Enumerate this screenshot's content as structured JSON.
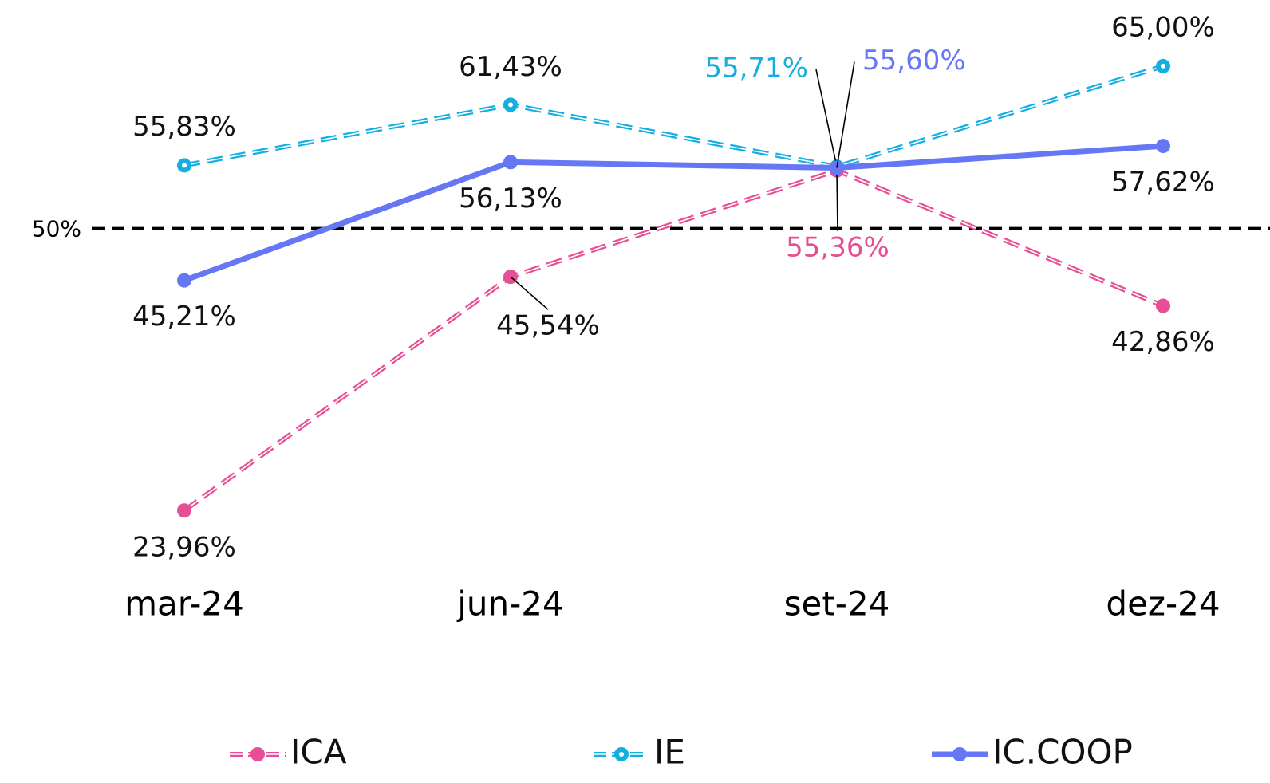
{
  "chart_data": {
    "type": "line",
    "categories": [
      "mar-24",
      "jun-24",
      "set-24",
      "dez-24"
    ],
    "series": [
      {
        "name": "ICA",
        "color": "#e64f96",
        "dashed": true,
        "values": [
          23.96,
          45.54,
          55.36,
          42.86
        ],
        "value_labels": [
          "23,96%",
          "45,54%",
          "55,36%",
          "42,86%"
        ]
      },
      {
        "name": "IE",
        "color": "#14afe0",
        "dashed": true,
        "values": [
          55.83,
          61.43,
          55.71,
          65.0
        ],
        "value_labels": [
          "55,83%",
          "61,43%",
          "55,71%",
          "65,00%"
        ]
      },
      {
        "name": "IC.COOP",
        "color": "#6677f5",
        "dashed": false,
        "values": [
          45.21,
          56.13,
          55.6,
          57.62
        ],
        "value_labels": [
          "45,21%",
          "56,13%",
          "55,60%",
          "57,62%"
        ]
      }
    ],
    "ylim": [
      20,
      70
    ],
    "reference_line": {
      "value": 50,
      "label": "50%"
    },
    "legend": "bottom"
  }
}
